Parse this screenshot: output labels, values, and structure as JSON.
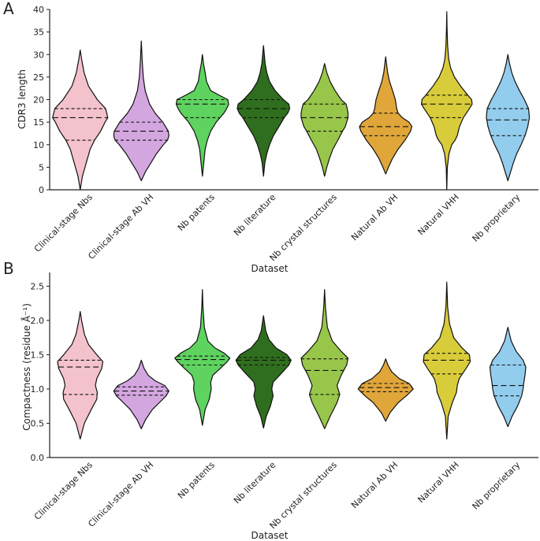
{
  "chart_data": [
    {
      "type": "violin",
      "panel_label": "A",
      "xlabel": "Dataset",
      "ylabel": "CDR3 length",
      "ylim": [
        0,
        40
      ],
      "yticks": [
        0,
        5,
        10,
        15,
        20,
        25,
        30,
        35,
        40
      ],
      "categories": [
        "Clinical-stage Nbs",
        "Clinical-stage Ab VH",
        "Nb patents",
        "Nb literature",
        "Nb crystal structures",
        "Natural Ab VH",
        "Natural VHH",
        "Nb proprietary"
      ],
      "colors": [
        "#f4c2cc",
        "#d4a6e0",
        "#5fd35f",
        "#2f6e1e",
        "#98c64a",
        "#e0a63a",
        "#d9cc3a",
        "#93cdee"
      ],
      "series": [
        {
          "min": 0,
          "max": 31,
          "quartiles": [
            11,
            16,
            18
          ],
          "profile": [
            [
              0,
              0
            ],
            [
              3,
              0.08
            ],
            [
              6,
              0.22
            ],
            [
              9,
              0.36
            ],
            [
              11,
              0.52
            ],
            [
              13,
              0.74
            ],
            [
              15,
              0.9
            ],
            [
              16,
              1.0
            ],
            [
              18,
              0.92
            ],
            [
              20,
              0.62
            ],
            [
              23,
              0.3
            ],
            [
              26,
              0.14
            ],
            [
              29,
              0.05
            ],
            [
              31,
              0
            ]
          ]
        },
        {
          "min": 2,
          "max": 33,
          "quartiles": [
            11,
            13,
            15
          ],
          "profile": [
            [
              2,
              0
            ],
            [
              4,
              0.15
            ],
            [
              6,
              0.35
            ],
            [
              8,
              0.55
            ],
            [
              10,
              0.8
            ],
            [
              11,
              0.95
            ],
            [
              12,
              1.0
            ],
            [
              13,
              0.98
            ],
            [
              15,
              0.78
            ],
            [
              17,
              0.5
            ],
            [
              19,
              0.3
            ],
            [
              22,
              0.14
            ],
            [
              25,
              0.07
            ],
            [
              29,
              0.03
            ],
            [
              33,
              0
            ]
          ]
        },
        {
          "min": 3,
          "max": 30,
          "quartiles": [
            16,
            19,
            20
          ],
          "profile": [
            [
              3,
              0
            ],
            [
              6,
              0.05
            ],
            [
              9,
              0.1
            ],
            [
              11,
              0.18
            ],
            [
              13,
              0.3
            ],
            [
              15,
              0.5
            ],
            [
              16,
              0.64
            ],
            [
              17,
              0.78
            ],
            [
              18,
              0.88
            ],
            [
              19,
              0.95
            ],
            [
              20,
              0.92
            ],
            [
              21,
              0.6
            ],
            [
              22,
              0.3
            ],
            [
              24,
              0.15
            ],
            [
              26,
              0.1
            ],
            [
              28,
              0.04
            ],
            [
              30,
              0
            ]
          ]
        },
        {
          "min": 3,
          "max": 32,
          "quartiles": [
            16,
            18,
            20
          ],
          "profile": [
            [
              3,
              0
            ],
            [
              6,
              0.05
            ],
            [
              8,
              0.12
            ],
            [
              10,
              0.22
            ],
            [
              12,
              0.36
            ],
            [
              14,
              0.56
            ],
            [
              16,
              0.75
            ],
            [
              17,
              0.88
            ],
            [
              18,
              0.95
            ],
            [
              19,
              0.92
            ],
            [
              20,
              0.72
            ],
            [
              22,
              0.42
            ],
            [
              24,
              0.22
            ],
            [
              26,
              0.12
            ],
            [
              28,
              0.06
            ],
            [
              30,
              0.03
            ],
            [
              32,
              0
            ]
          ]
        },
        {
          "min": 3,
          "max": 28,
          "quartiles": [
            13,
            16,
            19
          ],
          "profile": [
            [
              3,
              0
            ],
            [
              5,
              0.08
            ],
            [
              7,
              0.18
            ],
            [
              9,
              0.3
            ],
            [
              11,
              0.48
            ],
            [
              13,
              0.65
            ],
            [
              14,
              0.75
            ],
            [
              15,
              0.8
            ],
            [
              16,
              0.85
            ],
            [
              17,
              0.85
            ],
            [
              18,
              0.82
            ],
            [
              19,
              0.78
            ],
            [
              20,
              0.6
            ],
            [
              22,
              0.38
            ],
            [
              24,
              0.2
            ],
            [
              26,
              0.08
            ],
            [
              28,
              0
            ]
          ]
        },
        {
          "min": 3.5,
          "max": 29.5,
          "quartiles": [
            12,
            14,
            17
          ],
          "profile": [
            [
              3.5,
              0
            ],
            [
              5,
              0.1
            ],
            [
              7,
              0.25
            ],
            [
              9,
              0.45
            ],
            [
              11,
              0.7
            ],
            [
              13,
              0.9
            ],
            [
              14,
              0.95
            ],
            [
              15,
              0.85
            ],
            [
              16,
              0.6
            ],
            [
              17,
              0.45
            ],
            [
              18,
              0.4
            ],
            [
              20,
              0.35
            ],
            [
              22,
              0.25
            ],
            [
              24,
              0.14
            ],
            [
              26,
              0.07
            ],
            [
              28,
              0.03
            ],
            [
              29.5,
              0
            ]
          ]
        },
        {
          "min": 0,
          "max": 39.5,
          "quartiles": [
            16,
            19,
            21
          ],
          "profile": [
            [
              0,
              0
            ],
            [
              5,
              0.02
            ],
            [
              8,
              0.08
            ],
            [
              10,
              0.18
            ],
            [
              11,
              0.3
            ],
            [
              12,
              0.38
            ],
            [
              13,
              0.42
            ],
            [
              14,
              0.46
            ],
            [
              16,
              0.6
            ],
            [
              18,
              0.82
            ],
            [
              19,
              0.92
            ],
            [
              20,
              0.9
            ],
            [
              21,
              0.76
            ],
            [
              23,
              0.5
            ],
            [
              25,
              0.28
            ],
            [
              27,
              0.14
            ],
            [
              29,
              0.07
            ],
            [
              32,
              0.03
            ],
            [
              36,
              0.01
            ],
            [
              39.5,
              0
            ]
          ]
        },
        {
          "min": 2,
          "max": 30,
          "quartiles": [
            12,
            15.5,
            18
          ],
          "profile": [
            [
              2,
              0
            ],
            [
              4,
              0.1
            ],
            [
              6,
              0.2
            ],
            [
              8,
              0.32
            ],
            [
              10,
              0.48
            ],
            [
              12,
              0.62
            ],
            [
              14,
              0.72
            ],
            [
              16,
              0.78
            ],
            [
              18,
              0.75
            ],
            [
              20,
              0.6
            ],
            [
              22,
              0.42
            ],
            [
              24,
              0.26
            ],
            [
              26,
              0.14
            ],
            [
              28,
              0.06
            ],
            [
              30,
              0
            ]
          ]
        }
      ]
    },
    {
      "type": "violin",
      "panel_label": "B",
      "xlabel": "Dataset",
      "ylabel": "Compactness  (residue Å⁻¹)",
      "ylim": [
        0,
        2.7
      ],
      "yticks": [
        0.0,
        0.5,
        1.0,
        1.5,
        2.0,
        2.5
      ],
      "categories": [
        "Clinical-stage Nbs",
        "Clinical-stage Ab VH",
        "Nb patents",
        "Nb literature",
        "Nb crystal structures",
        "Natural Ab VH",
        "Natural VHH",
        "Nb proprietary"
      ],
      "colors": [
        "#f4c2cc",
        "#d4a6e0",
        "#5fd35f",
        "#2f6e1e",
        "#98c64a",
        "#e0a63a",
        "#d9cc3a",
        "#93cdee"
      ],
      "series": [
        {
          "min": 0.27,
          "max": 2.13,
          "quartiles": [
            0.92,
            1.32,
            1.42
          ],
          "profile": [
            [
              0.27,
              0
            ],
            [
              0.5,
              0.15
            ],
            [
              0.7,
              0.4
            ],
            [
              0.85,
              0.6
            ],
            [
              0.95,
              0.62
            ],
            [
              1.05,
              0.55
            ],
            [
              1.15,
              0.6
            ],
            [
              1.3,
              0.78
            ],
            [
              1.4,
              0.82
            ],
            [
              1.5,
              0.6
            ],
            [
              1.65,
              0.3
            ],
            [
              1.8,
              0.15
            ],
            [
              2.0,
              0.05
            ],
            [
              2.13,
              0
            ]
          ]
        },
        {
          "min": 0.42,
          "max": 1.42,
          "quartiles": [
            0.91,
            0.97,
            1.03
          ],
          "profile": [
            [
              0.42,
              0
            ],
            [
              0.55,
              0.15
            ],
            [
              0.7,
              0.4
            ],
            [
              0.8,
              0.65
            ],
            [
              0.9,
              0.9
            ],
            [
              0.97,
              1.0
            ],
            [
              1.05,
              0.85
            ],
            [
              1.12,
              0.5
            ],
            [
              1.2,
              0.25
            ],
            [
              1.3,
              0.1
            ],
            [
              1.42,
              0
            ]
          ]
        },
        {
          "min": 0.47,
          "max": 2.45,
          "quartiles": [
            1.35,
            1.43,
            1.48
          ],
          "profile": [
            [
              0.47,
              0
            ],
            [
              0.7,
              0.1
            ],
            [
              0.85,
              0.25
            ],
            [
              1.0,
              0.32
            ],
            [
              1.1,
              0.3
            ],
            [
              1.2,
              0.38
            ],
            [
              1.3,
              0.65
            ],
            [
              1.4,
              0.9
            ],
            [
              1.45,
              1.0
            ],
            [
              1.52,
              0.8
            ],
            [
              1.6,
              0.45
            ],
            [
              1.7,
              0.2
            ],
            [
              1.9,
              0.07
            ],
            [
              2.2,
              0.02
            ],
            [
              2.45,
              0
            ]
          ]
        },
        {
          "min": 0.43,
          "max": 2.07,
          "quartiles": [
            1.35,
            1.42,
            1.46
          ],
          "profile": [
            [
              0.43,
              0
            ],
            [
              0.6,
              0.1
            ],
            [
              0.75,
              0.25
            ],
            [
              0.9,
              0.35
            ],
            [
              1.0,
              0.3
            ],
            [
              1.1,
              0.35
            ],
            [
              1.25,
              0.7
            ],
            [
              1.35,
              0.92
            ],
            [
              1.42,
              1.0
            ],
            [
              1.5,
              0.85
            ],
            [
              1.6,
              0.45
            ],
            [
              1.72,
              0.2
            ],
            [
              1.85,
              0.08
            ],
            [
              2.07,
              0
            ]
          ]
        },
        {
          "min": 0.42,
          "max": 2.45,
          "quartiles": [
            0.92,
            1.27,
            1.44
          ],
          "profile": [
            [
              0.42,
              0
            ],
            [
              0.6,
              0.2
            ],
            [
              0.8,
              0.45
            ],
            [
              0.92,
              0.55
            ],
            [
              1.05,
              0.45
            ],
            [
              1.2,
              0.6
            ],
            [
              1.35,
              0.8
            ],
            [
              1.45,
              0.85
            ],
            [
              1.55,
              0.6
            ],
            [
              1.7,
              0.28
            ],
            [
              1.9,
              0.1
            ],
            [
              2.2,
              0.03
            ],
            [
              2.45,
              0
            ]
          ]
        },
        {
          "min": 0.53,
          "max": 1.44,
          "quartiles": [
            0.96,
            1.02,
            1.08
          ],
          "profile": [
            [
              0.53,
              0
            ],
            [
              0.65,
              0.15
            ],
            [
              0.8,
              0.45
            ],
            [
              0.9,
              0.75
            ],
            [
              1.0,
              1.0
            ],
            [
              1.08,
              0.85
            ],
            [
              1.15,
              0.5
            ],
            [
              1.25,
              0.22
            ],
            [
              1.35,
              0.08
            ],
            [
              1.44,
              0
            ]
          ]
        },
        {
          "min": 0.27,
          "max": 2.56,
          "quartiles": [
            1.22,
            1.42,
            1.52
          ],
          "profile": [
            [
              0.27,
              0
            ],
            [
              0.6,
              0.05
            ],
            [
              0.8,
              0.2
            ],
            [
              0.95,
              0.35
            ],
            [
              1.05,
              0.38
            ],
            [
              1.15,
              0.45
            ],
            [
              1.3,
              0.7
            ],
            [
              1.4,
              0.85
            ],
            [
              1.5,
              0.82
            ],
            [
              1.6,
              0.55
            ],
            [
              1.75,
              0.25
            ],
            [
              1.95,
              0.1
            ],
            [
              2.2,
              0.03
            ],
            [
              2.56,
              0
            ]
          ]
        },
        {
          "min": 0.45,
          "max": 1.9,
          "quartiles": [
            0.9,
            1.05,
            1.35
          ],
          "profile": [
            [
              0.45,
              0
            ],
            [
              0.6,
              0.15
            ],
            [
              0.75,
              0.35
            ],
            [
              0.9,
              0.5
            ],
            [
              1.0,
              0.55
            ],
            [
              1.1,
              0.58
            ],
            [
              1.2,
              0.62
            ],
            [
              1.32,
              0.65
            ],
            [
              1.42,
              0.55
            ],
            [
              1.55,
              0.3
            ],
            [
              1.7,
              0.12
            ],
            [
              1.9,
              0
            ]
          ]
        }
      ]
    }
  ]
}
